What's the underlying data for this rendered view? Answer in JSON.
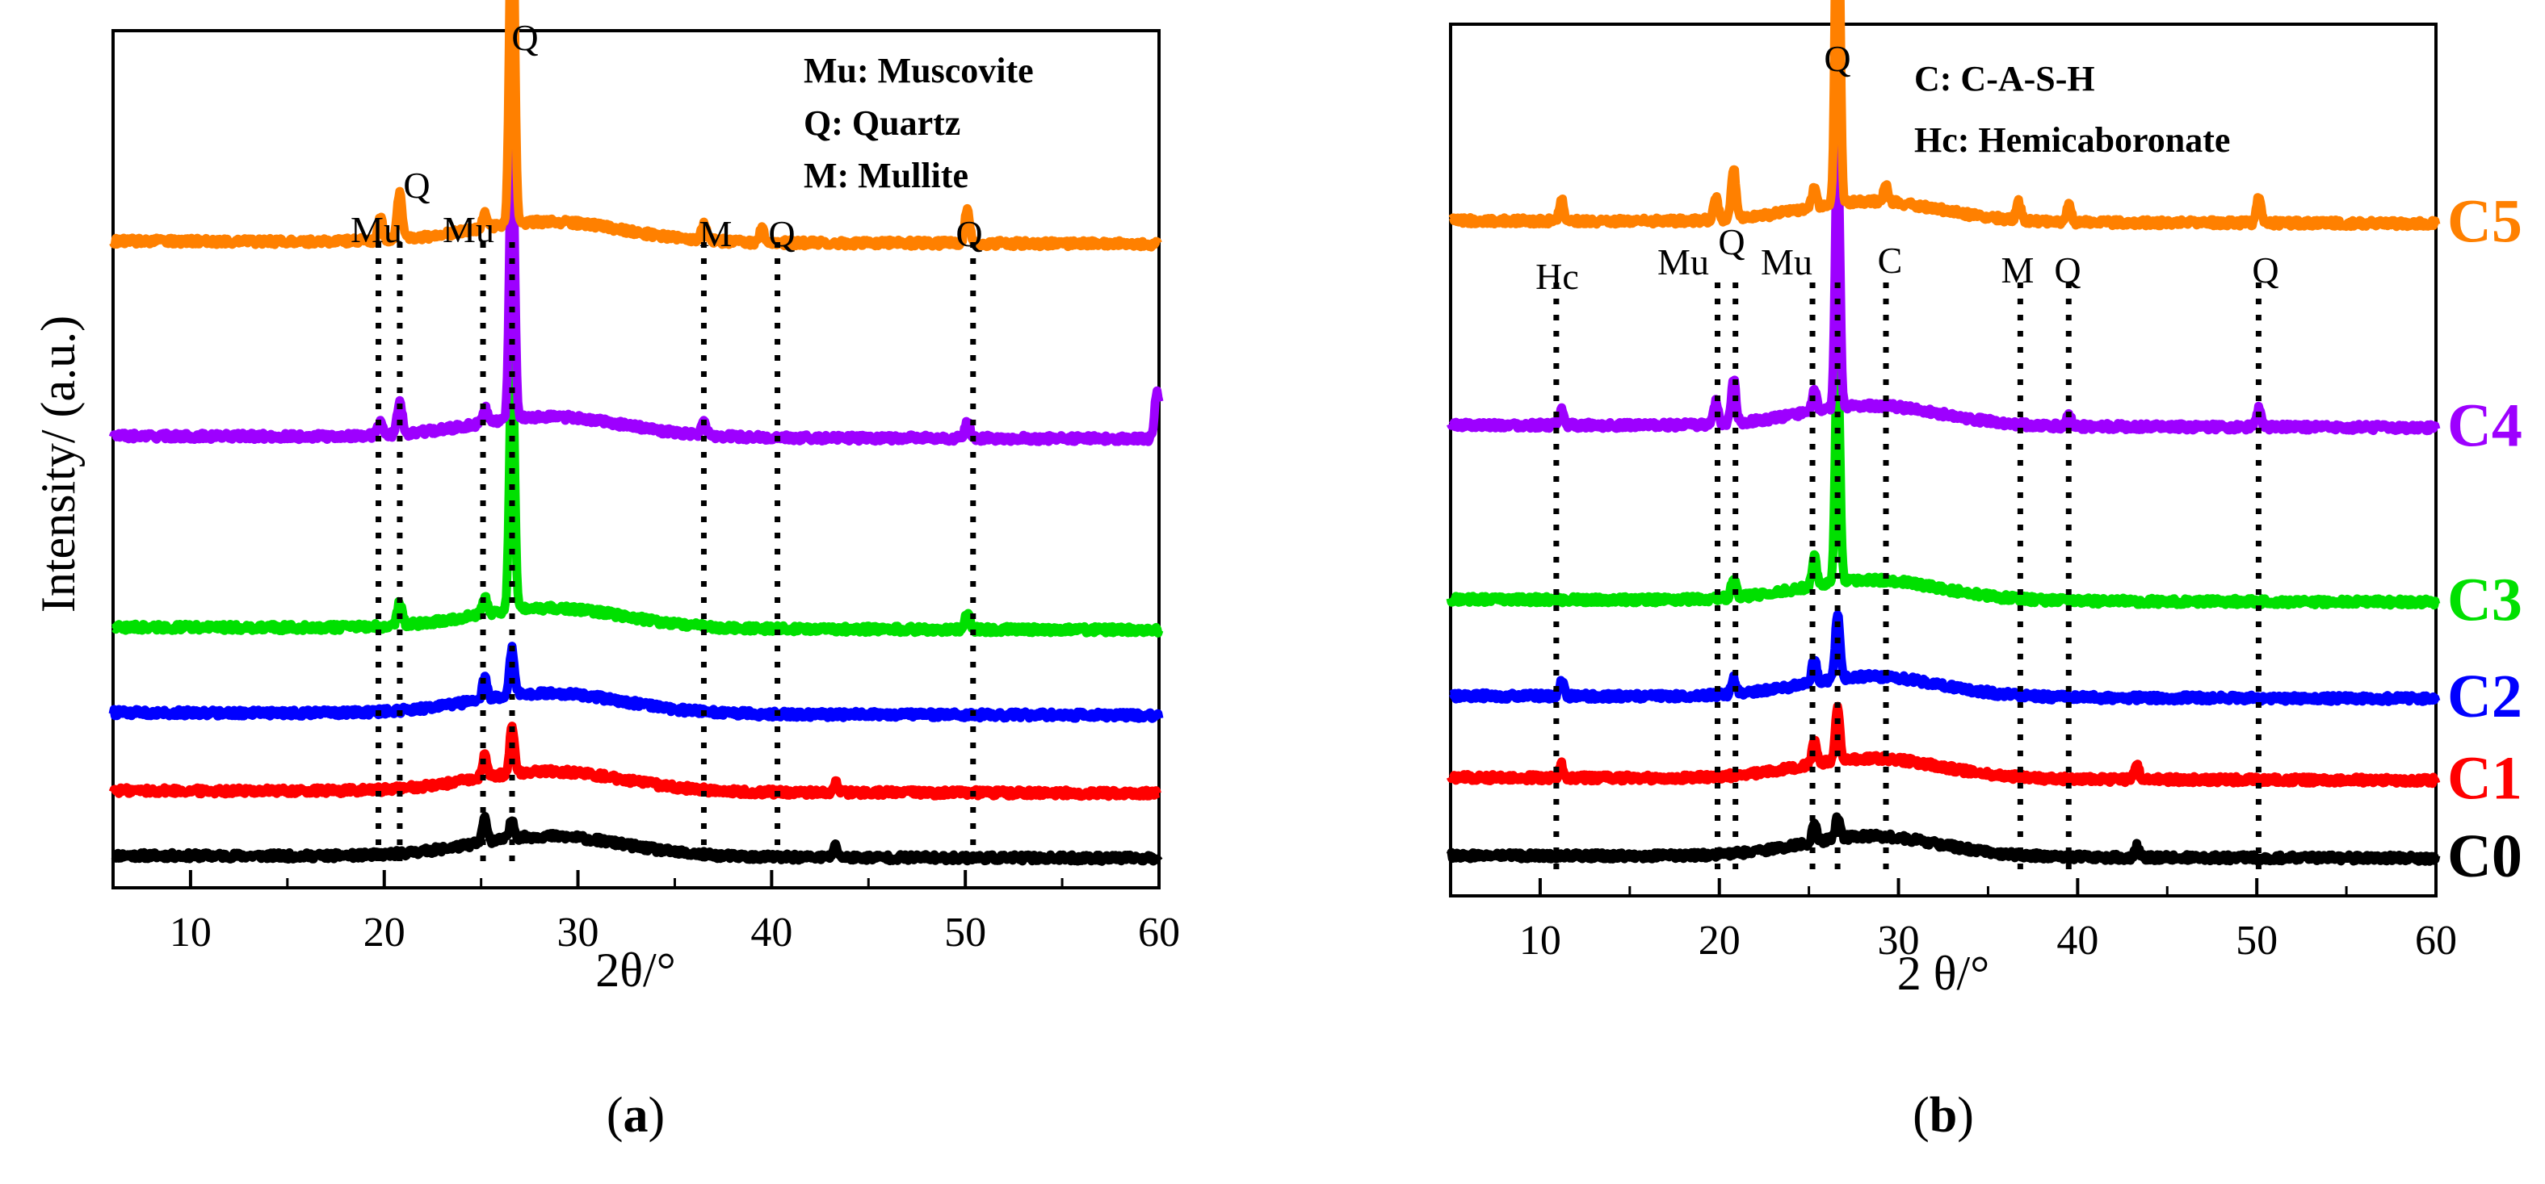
{
  "chart_data": [
    {
      "type": "line",
      "panel": "a",
      "xlabel": "2θ/°",
      "ylabel": "Intensity/ (a.u.)",
      "xlim": [
        6,
        60
      ],
      "xticks": [
        "10",
        "20",
        "30",
        "40",
        "50",
        "60"
      ],
      "legend_notes": [
        "Mu: Muscovite",
        "Q: Quartz",
        "M: Mullite"
      ],
      "series": [
        {
          "name": "C0",
          "color": "#000000",
          "offset": 0,
          "peaks": [
            [
              25.2,
              1.3
            ],
            [
              26.6,
              1.0
            ],
            [
              43.3,
              0.6
            ]
          ]
        },
        {
          "name": "C1",
          "color": "#ff0000",
          "offset": 3.5,
          "peaks": [
            [
              25.2,
              1.2
            ],
            [
              26.6,
              2.5
            ],
            [
              43.3,
              0.6
            ]
          ]
        },
        {
          "name": "C2",
          "color": "#0000ff",
          "offset": 7.7,
          "peaks": [
            [
              25.2,
              1.2
            ],
            [
              26.6,
              2.5
            ]
          ]
        },
        {
          "name": "C3",
          "color": "#00e000",
          "offset": 12.3,
          "peaks": [
            [
              20.8,
              1.2
            ],
            [
              25.2,
              0.9
            ],
            [
              26.6,
              14.0
            ],
            [
              50.1,
              0.9
            ]
          ]
        },
        {
          "name": "C4",
          "color": "#9d00ff",
          "offset": 22.6,
          "peaks": [
            [
              19.8,
              0.7
            ],
            [
              20.8,
              1.8
            ],
            [
              25.2,
              0.8
            ],
            [
              26.6,
              16.0
            ],
            [
              36.5,
              0.7
            ],
            [
              50.1,
              0.9
            ],
            [
              59.9,
              2.5
            ]
          ]
        },
        {
          "name": "C5",
          "color": "#ff8000",
          "offset": 33.1,
          "peaks": [
            [
              19.8,
              1.2
            ],
            [
              20.8,
              2.5
            ],
            [
              25.2,
              0.9
            ],
            [
              26.6,
              19.5
            ],
            [
              36.5,
              0.9
            ],
            [
              39.5,
              0.7
            ],
            [
              50.1,
              1.9
            ]
          ]
        }
      ],
      "annotations": [
        {
          "label": "Mu",
          "x": 19.7
        },
        {
          "label": "Q",
          "x": 20.8
        },
        {
          "label": "Mu",
          "x": 25.1
        },
        {
          "label": "Q",
          "x": 26.6
        },
        {
          "label": "M",
          "x": 36.5
        },
        {
          "label": "Q",
          "x": 40.3
        },
        {
          "label": "Q",
          "x": 50.4
        }
      ]
    },
    {
      "type": "line",
      "panel": "b",
      "xlabel": "2 θ/°",
      "ylabel": "",
      "xlim": [
        5,
        60
      ],
      "xticks": [
        "10",
        "20",
        "30",
        "40",
        "50",
        "60"
      ],
      "legend_notes": [
        "C: C-A-S-H",
        "Hc: Hemicaboronate"
      ],
      "series": [
        {
          "name": "C0",
          "color": "#000000",
          "offset": 0,
          "peaks": [
            [
              25.3,
              1.0
            ],
            [
              26.6,
              1.1
            ],
            [
              43.3,
              0.6
            ]
          ]
        },
        {
          "name": "C1",
          "color": "#ff0000",
          "offset": 4.2,
          "peaks": [
            [
              11.2,
              0.7
            ],
            [
              25.3,
              1.2
            ],
            [
              26.6,
              2.8
            ],
            [
              43.3,
              0.8
            ]
          ]
        },
        {
          "name": "C2",
          "color": "#0000ff",
          "offset": 8.6,
          "peaks": [
            [
              11.2,
              0.8
            ],
            [
              20.8,
              0.8
            ],
            [
              25.3,
              1.3
            ],
            [
              26.6,
              3.5
            ]
          ]
        },
        {
          "name": "C3",
          "color": "#00e000",
          "offset": 13.8,
          "peaks": [
            [
              20.8,
              1.1
            ],
            [
              25.3,
              1.6
            ],
            [
              26.6,
              12.5
            ]
          ]
        },
        {
          "name": "C4",
          "color": "#9d00ff",
          "offset": 23.2,
          "peaks": [
            [
              11.2,
              0.8
            ],
            [
              19.8,
              1.2
            ],
            [
              20.8,
              2.3
            ],
            [
              25.3,
              1.2
            ],
            [
              26.6,
              14.5
            ],
            [
              39.5,
              0.7
            ],
            [
              50.1,
              1.0
            ]
          ]
        },
        {
          "name": "C5",
          "color": "#ff8000",
          "offset": 34.2,
          "peaks": [
            [
              11.2,
              1.1
            ],
            [
              19.8,
              1.3
            ],
            [
              20.8,
              2.7
            ],
            [
              25.3,
              1.0
            ],
            [
              26.6,
              21.0
            ],
            [
              29.3,
              0.9
            ],
            [
              36.7,
              1.0
            ],
            [
              39.5,
              1.0
            ],
            [
              50.1,
              1.4
            ]
          ]
        }
      ],
      "annotations": [
        {
          "label": "Hc",
          "x": 10.9
        },
        {
          "label": "Mu",
          "x": 19.9
        },
        {
          "label": "Q",
          "x": 20.9
        },
        {
          "label": "Mu",
          "x": 25.2
        },
        {
          "label": "Q",
          "x": 26.6
        },
        {
          "label": "C",
          "x": 29.3
        },
        {
          "label": "M",
          "x": 36.8
        },
        {
          "label": "Q",
          "x": 39.5
        },
        {
          "label": "Q",
          "x": 50.1
        }
      ]
    }
  ],
  "captions": {
    "a": "a",
    "b": "b"
  },
  "paren_open": "(",
  "paren_close": ")"
}
